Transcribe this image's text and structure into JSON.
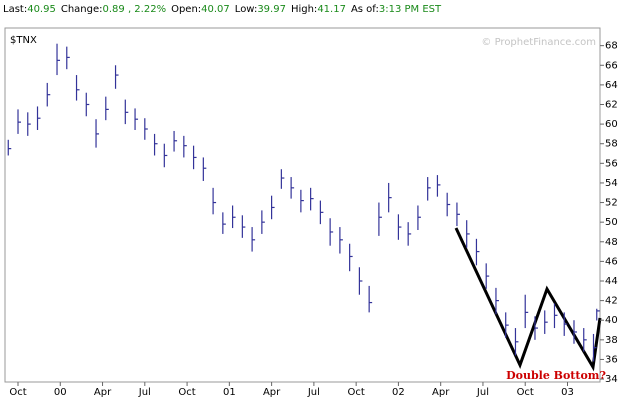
{
  "quote": [
    {
      "label": "Last:",
      "value": "40.95"
    },
    {
      "label": "Change:",
      "value": "0.89 , 2.22%"
    },
    {
      "label": "Open:",
      "value": "40.07"
    },
    {
      "label": "Low:",
      "value": "39.97"
    },
    {
      "label": "High:",
      "value": "41.17"
    },
    {
      "label": "As of:",
      "value": "3:13 PM EST"
    }
  ],
  "watermark": "© ProphetFinance.com",
  "annotation": "Double Bottom?",
  "chart_data": {
    "type": "ohlc",
    "title": "$TNX",
    "color": "#333399",
    "x": [
      1,
      4,
      7,
      10,
      13,
      16,
      19,
      22,
      25,
      28,
      31,
      34,
      37,
      40,
      43,
      46,
      49,
      52,
      55,
      58,
      61,
      64,
      67,
      70,
      73,
      76,
      79,
      82,
      85,
      88,
      91,
      94,
      97,
      100,
      103,
      106,
      109,
      112,
      115,
      118,
      121,
      124,
      127,
      130,
      133,
      136,
      139,
      142,
      145,
      148,
      151,
      154,
      157,
      160,
      163,
      166,
      169,
      172,
      175,
      178,
      181,
      182
    ],
    "series": [
      {
        "name": "High",
        "values": [
          58.4,
          61.5,
          61.2,
          61.8,
          64.2,
          68.2,
          67.9,
          65.0,
          63.2,
          60.5,
          62.8,
          66.0,
          62.5,
          61.6,
          60.6,
          59.0,
          58.0,
          59.3,
          58.8,
          57.8,
          56.6,
          53.5,
          51.0,
          51.7,
          50.7,
          49.5,
          51.2,
          52.7,
          55.4,
          54.6,
          53.3,
          53.5,
          52.2,
          50.4,
          49.5,
          47.8,
          45.4,
          43.5,
          52.0,
          54.0,
          50.8,
          50.0,
          51.7,
          54.6,
          54.8,
          53.0,
          52.0,
          50.2,
          48.3,
          45.8,
          43.3,
          40.8,
          39.2,
          42.6,
          40.4,
          41.0,
          41.7,
          40.8,
          40.0,
          39.2,
          38.6,
          41.17
        ]
      },
      {
        "name": "Low",
        "values": [
          56.8,
          59.0,
          58.8,
          59.4,
          61.8,
          65.0,
          65.6,
          62.4,
          60.8,
          57.6,
          60.4,
          63.6,
          60.0,
          59.4,
          58.4,
          56.8,
          55.6,
          57.2,
          56.6,
          55.4,
          54.2,
          50.8,
          48.8,
          49.4,
          48.4,
          47.0,
          48.8,
          50.3,
          53.4,
          52.4,
          51.0,
          51.2,
          49.8,
          47.6,
          46.8,
          45.0,
          42.6,
          40.8,
          48.6,
          51.0,
          48.2,
          47.6,
          49.2,
          52.2,
          52.6,
          50.6,
          49.6,
          47.4,
          45.6,
          43.2,
          40.6,
          38.2,
          36.4,
          39.2,
          38.0,
          38.6,
          39.2,
          38.4,
          37.6,
          36.8,
          35.8,
          39.97
        ]
      },
      {
        "name": "Close",
        "values": [
          57.5,
          60.2,
          60.0,
          60.6,
          63.0,
          66.5,
          66.8,
          63.5,
          62.0,
          59.0,
          61.5,
          65.0,
          61.2,
          60.5,
          59.5,
          58.0,
          56.8,
          58.3,
          57.8,
          56.6,
          55.5,
          52.0,
          49.8,
          50.5,
          49.5,
          48.2,
          50.0,
          51.5,
          54.5,
          53.5,
          52.2,
          52.4,
          51.0,
          49.0,
          48.2,
          46.5,
          44.0,
          41.8,
          50.5,
          52.5,
          49.5,
          48.8,
          50.5,
          53.5,
          53.8,
          51.8,
          50.8,
          48.8,
          47.0,
          44.5,
          42.0,
          39.5,
          37.8,
          40.8,
          39.2,
          39.8,
          40.5,
          39.6,
          38.8,
          38.0,
          37.2,
          40.95
        ]
      }
    ],
    "xlim": [
      0,
      183
    ],
    "xticks": [
      {
        "value": 4,
        "label": "Oct"
      },
      {
        "value": 17,
        "label": "00"
      },
      {
        "value": 30,
        "label": "Apr"
      },
      {
        "value": 43,
        "label": "Jul"
      },
      {
        "value": 56,
        "label": "Oct"
      },
      {
        "value": 69,
        "label": "01"
      },
      {
        "value": 82,
        "label": "Apr"
      },
      {
        "value": 95,
        "label": "Jul"
      },
      {
        "value": 108,
        "label": "Oct"
      },
      {
        "value": 121,
        "label": "02"
      },
      {
        "value": 134,
        "label": "Apr"
      },
      {
        "value": 147,
        "label": "Jul"
      },
      {
        "value": 160,
        "label": "Oct"
      },
      {
        "value": 173,
        "label": "03"
      }
    ],
    "ylim": [
      33.7,
      69.8
    ],
    "yticks": [
      34,
      36,
      38,
      40,
      42,
      44,
      46,
      48,
      50,
      52,
      54,
      56,
      58,
      60,
      62,
      64,
      66,
      68
    ]
  }
}
